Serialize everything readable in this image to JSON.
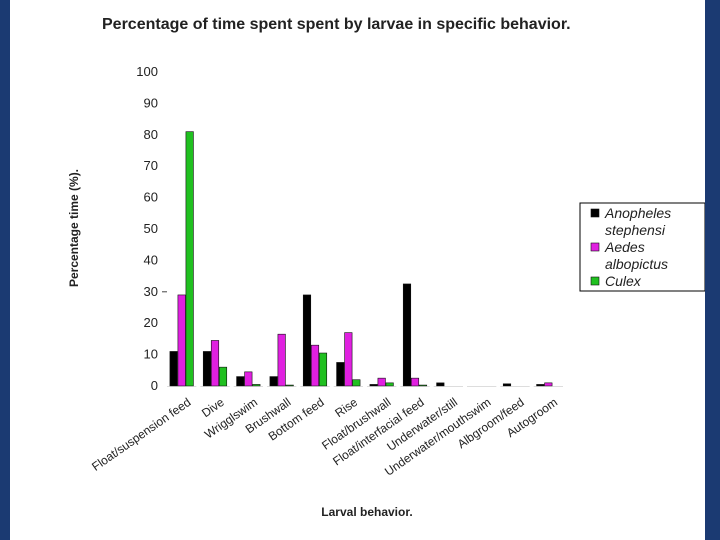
{
  "chart_data": {
    "type": "bar",
    "title": "Percentage of time spent spent by  larvae in specific behavior.",
    "xlabel": "Larval behavior.",
    "ylabel": "Percentage time (%).",
    "ylim": [
      0,
      100
    ],
    "yticks": [
      0,
      10,
      20,
      30,
      40,
      50,
      60,
      70,
      80,
      90,
      100
    ],
    "categories": [
      "Float/suspension feed",
      "Dive",
      "Wrigglswim",
      "Brushwall",
      "Bottom feed",
      "Rise",
      "Float/brushwall",
      "Float/interfacial feed",
      "Underwater/still",
      "Underwater/mouthswim",
      "Albgroom/feed",
      "Autogroom"
    ],
    "series": [
      {
        "name": "Anopheles stephensi",
        "color": "#000000",
        "values": [
          11,
          11,
          3,
          3,
          29,
          7.5,
          0.5,
          32.5,
          1,
          0,
          0.7,
          0.5
        ]
      },
      {
        "name": "Aedes albopictus",
        "color": "#e020e0",
        "values": [
          29,
          14.5,
          4.5,
          16.5,
          13,
          17,
          2.5,
          2.5,
          0,
          0,
          0,
          1
        ]
      },
      {
        "name": "Culex",
        "color": "#20c020",
        "values": [
          81,
          6,
          0.5,
          0.3,
          10.5,
          2,
          1,
          0.3,
          0,
          0,
          0,
          0
        ]
      }
    ],
    "legend": {
      "position": "right",
      "entries": [
        "Anopheles stephensi",
        "Aedes albopictus",
        "Culex"
      ]
    }
  }
}
